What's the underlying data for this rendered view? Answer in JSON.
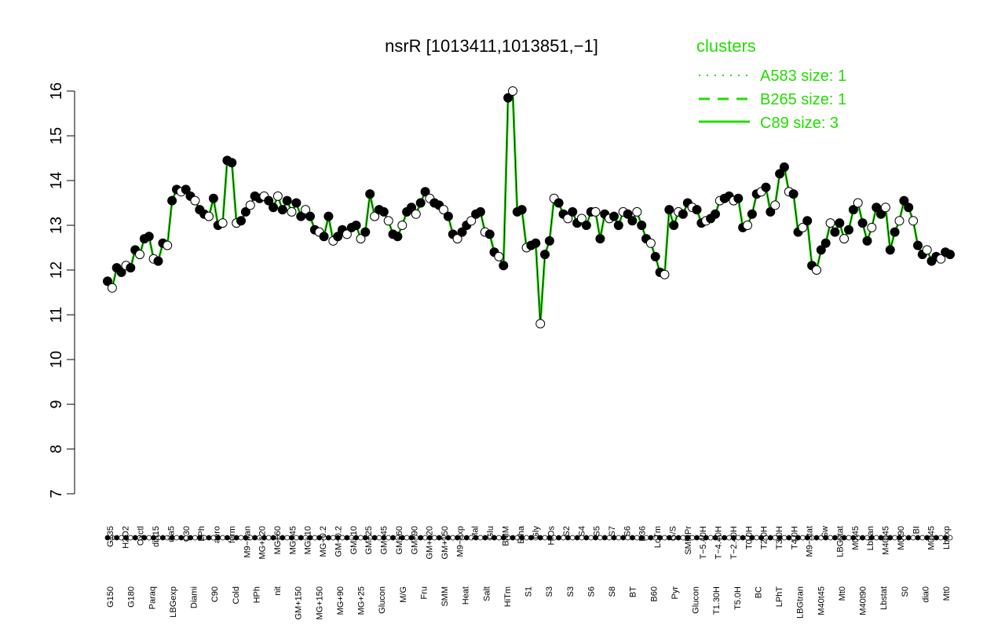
{
  "chart_data": {
    "type": "line",
    "title": "nsrR [1013411,1013851,−1]",
    "xlabel": "",
    "ylabel": "",
    "ylim": [
      7,
      16
    ],
    "yticks": [
      7,
      8,
      9,
      10,
      11,
      12,
      13,
      14,
      15,
      16
    ],
    "grid": false,
    "legend": {
      "title": "clusters",
      "placement": "top-right",
      "entries": [
        {
          "label": "A583 size: 1",
          "style": "dotted"
        },
        {
          "label": "B265 size: 1",
          "style": "dashed"
        },
        {
          "label": "C89 size: 3",
          "style": "solid"
        }
      ]
    },
    "colors": {
      "line": "#22dd00",
      "point_filled": "#000000",
      "point_open": "#ffffff",
      "stroke": "#000000"
    },
    "x_tick_labels_top": [
      "G135",
      "H2O2",
      "Oxctl",
      "dia15",
      "dia5",
      "C30",
      "LPh",
      "aero",
      "ferm",
      "M9−tran",
      "MG+120",
      "MG+60",
      "MG+45",
      "MG+10",
      "MG−0.2",
      "GM−0.2",
      "GM+10",
      "GM+25",
      "GM+45",
      "GM+60",
      "GM+90",
      "GM+120",
      "GM+150",
      "M9−exp",
      "Mal",
      "Glu",
      "BMM",
      "Etha",
      "Gly",
      "HiOs",
      "S2",
      "S4",
      "S5",
      "S7",
      "S6",
      "B36",
      "LoTm",
      "G/S",
      "SMMPr",
      "T−5.40H",
      "T−4.40H",
      "T−2.40H",
      "T0.0H",
      "T2.0H",
      "T3.0H",
      "T4.0H",
      "M9−stat",
      "Sw",
      "LBGstat",
      "M0t45",
      "Lbtran",
      "M40t45",
      "M0t90",
      "BI",
      "M0t45",
      "Lbexp"
    ],
    "x_tick_labels_bottom": [
      "G150",
      "G180",
      "Paraq",
      "LBGexp",
      "Diami",
      "C90",
      "Cold",
      "HPh",
      "nit",
      "GM+150",
      "MG+150",
      "MG+90",
      "MG+25",
      "Glucon",
      "M/G",
      "Fru",
      "SMM",
      "Heat",
      "Salt",
      "HiTm",
      "S1",
      "S3",
      "S3",
      "S6",
      "S8",
      "BT",
      "B60",
      "Pyr",
      "Glucon",
      "T1.30H",
      "T5.0H",
      "BC",
      "LPhT",
      "LBGtran",
      "M40t45",
      "Mt0",
      "M40t90",
      "Lbstat",
      "S0",
      "dia0",
      "Mt0"
    ],
    "series": [
      {
        "name": "C89 size: 3",
        "values": [
          11.75,
          11.6,
          12.05,
          11.95,
          12.1,
          12.05,
          12.45,
          12.35,
          12.7,
          12.75,
          12.25,
          12.2,
          12.6,
          12.55,
          13.55,
          13.8,
          13.75,
          13.8,
          13.65,
          13.55,
          13.35,
          13.25,
          13.2,
          13.6,
          13.0,
          13.05,
          14.45,
          14.4,
          13.05,
          13.1,
          13.3,
          13.45,
          13.65,
          13.6,
          13.65,
          13.55,
          13.4,
          13.65,
          13.35,
          13.55,
          13.3,
          13.5,
          13.2,
          13.35,
          13.2,
          12.9,
          12.85,
          12.75,
          13.2,
          12.65,
          12.75,
          12.9,
          12.8,
          12.95,
          13.0,
          12.7,
          12.85,
          13.7,
          13.2,
          13.35,
          13.3,
          13.1,
          12.8,
          12.75,
          13.0,
          13.3,
          13.4,
          13.25,
          13.5,
          13.75,
          13.6,
          13.5,
          13.45,
          13.35,
          13.2,
          12.8,
          12.7,
          12.85,
          13.0,
          13.1,
          13.25,
          13.3,
          12.85,
          12.8,
          12.4,
          12.3,
          12.1,
          15.85,
          16.0,
          13.3,
          13.35,
          12.5,
          12.55,
          12.6,
          10.8,
          12.35,
          12.65,
          13.6,
          13.5,
          13.25,
          13.15,
          13.3,
          13.05,
          13.15,
          13.0,
          13.3,
          13.3,
          12.7,
          13.25,
          13.15,
          13.2,
          13.0,
          13.3,
          13.25,
          13.1,
          13.3,
          13.0,
          12.7,
          12.6,
          12.3,
          11.95,
          11.9,
          13.35,
          13.0,
          13.3,
          13.25,
          13.5,
          13.4,
          13.35,
          13.05,
          13.1,
          13.15,
          13.25,
          13.55,
          13.6,
          13.65,
          13.55,
          13.6,
          12.95,
          13.0,
          13.25,
          13.7,
          13.75,
          13.85,
          13.3,
          13.45,
          14.15,
          14.3,
          13.75,
          13.7,
          12.85,
          12.95,
          13.1,
          12.1,
          12.0,
          12.45,
          12.6,
          13.05,
          12.85,
          13.05,
          12.7,
          12.9,
          13.35,
          13.5,
          13.05,
          12.65,
          12.95,
          13.4,
          13.25,
          13.4,
          12.45,
          12.85,
          13.1,
          13.55,
          13.4,
          13.1,
          12.55,
          12.35,
          12.45,
          12.2,
          12.3,
          12.25,
          12.4,
          12.35
        ]
      }
    ]
  }
}
